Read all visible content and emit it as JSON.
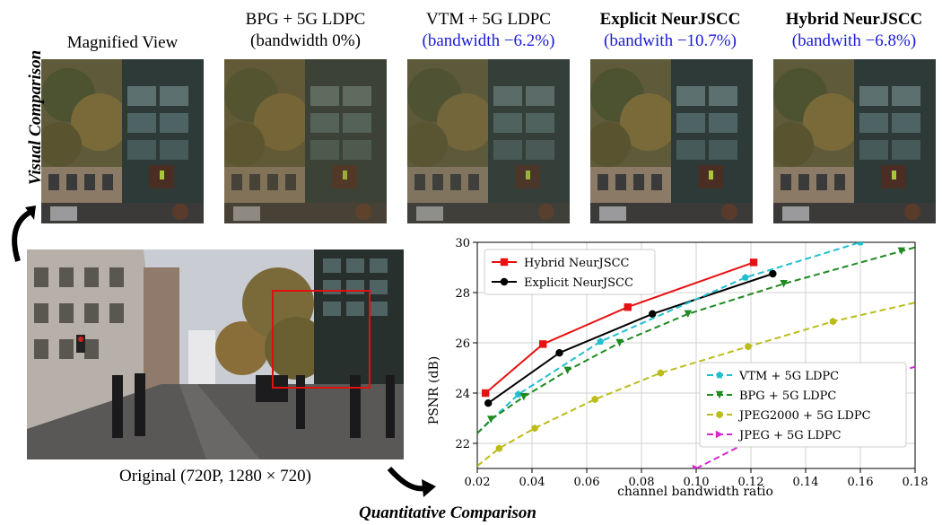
{
  "figure": {
    "vertical_label": "Visual Comparison",
    "bottom_label": "Quantitative Comparison",
    "original_caption": "Original (720P, 1280 × 720)"
  },
  "panels": [
    {
      "title": "Magnified View",
      "subtitle": ""
    },
    {
      "title": "BPG + 5G LDPC",
      "subtitle": "(bandwidth 0%)"
    },
    {
      "title": "VTM + 5G LDPC",
      "subtitle": "(bandwidth −6.2%)"
    },
    {
      "title": "Explicit NeurJSCC",
      "subtitle": "(bandwith −10.7%)"
    },
    {
      "title": "Hybrid NeurJSCC",
      "subtitle": "(bandwith −6.8%)"
    }
  ],
  "colors": {
    "hybrid": "#e81010",
    "explicit": "#000000",
    "vtm": "#1fbfcf",
    "bpg": "#1f8a1f",
    "jpeg2000": "#bcbc1a",
    "jpeg": "#d62ad0",
    "subtitle_blue": "#1a1ad6",
    "highlight_box": "#e01010"
  },
  "chart_data": {
    "type": "line",
    "xlabel": "channel bandwidth ratio",
    "ylabel": "PSNR (dB)",
    "xlim": [
      0.02,
      0.18
    ],
    "ylim": [
      21,
      30
    ],
    "xticks": [
      "0.02",
      "0.04",
      "0.06",
      "0.08",
      "0.10",
      "0.12",
      "0.14",
      "0.16",
      "0.18"
    ],
    "yticks": [
      "22",
      "24",
      "26",
      "28",
      "30"
    ],
    "grid": true,
    "series": [
      {
        "name": "Hybrid NeurJSCC",
        "style": "solid",
        "marker": "square",
        "color_key": "hybrid",
        "x": [
          0.023,
          0.044,
          0.075,
          0.121
        ],
        "y": [
          24.0,
          25.95,
          27.42,
          29.2
        ]
      },
      {
        "name": "Explicit NeurJSCC",
        "style": "solid",
        "marker": "circle",
        "color_key": "explicit",
        "x": [
          0.024,
          0.05,
          0.084,
          0.128
        ],
        "y": [
          23.6,
          25.6,
          27.15,
          28.75
        ]
      },
      {
        "name": "VTM + 5G LDPC",
        "style": "dashed",
        "marker": "pentagon",
        "color_key": "vtm",
        "x": [
          0.02,
          0.035,
          0.065,
          0.118,
          0.16
        ],
        "y": [
          22.4,
          23.95,
          26.05,
          28.6,
          30.0
        ]
      },
      {
        "name": "BPG + 5G LDPC",
        "style": "dashed",
        "marker": "triangle-down",
        "color_key": "bpg",
        "x": [
          0.02,
          0.025,
          0.037,
          0.053,
          0.072,
          0.097,
          0.132,
          0.175,
          0.18
        ],
        "y": [
          22.4,
          22.95,
          23.85,
          24.9,
          26.0,
          27.15,
          28.35,
          29.65,
          29.8
        ]
      },
      {
        "name": "JPEG2000 + 5G LDPC",
        "style": "dashed",
        "marker": "hexagon",
        "color_key": "jpeg2000",
        "x": [
          0.02,
          0.028,
          0.041,
          0.063,
          0.087,
          0.119,
          0.15,
          0.18
        ],
        "y": [
          21.1,
          21.8,
          22.6,
          23.75,
          24.8,
          25.85,
          26.85,
          27.6
        ]
      },
      {
        "name": "JPEG + 5G LDPC",
        "style": "dashed",
        "marker": "triangle-right",
        "color_key": "jpeg",
        "x": [
          0.1,
          0.128,
          0.157,
          0.18
        ],
        "y": [
          21.0,
          22.55,
          24.25,
          25.05
        ]
      }
    ]
  }
}
